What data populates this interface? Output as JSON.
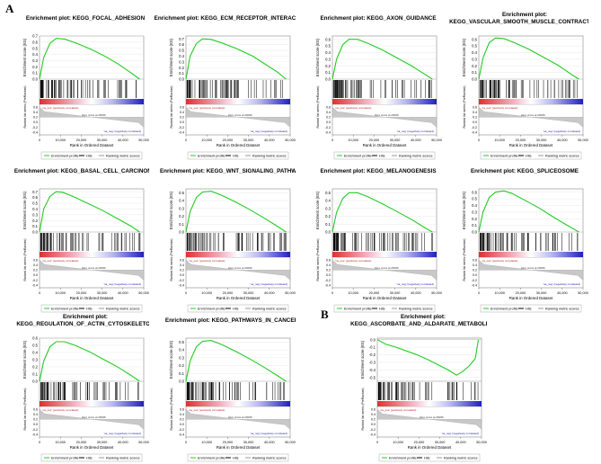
{
  "panel_letters": [
    "A",
    "B"
  ],
  "legend": {
    "enrichment_profile": "Enrichment profile",
    "hits": "Hits",
    "ranking_metric": "Ranking metric scores",
    "colors": {
      "profile": "#22cc22",
      "hits": "#000000",
      "ranking": "#999999"
    }
  },
  "chart_data": [
    {
      "type": "line",
      "title_line1": "Enrichment plot: KEGG_FOCAL_ADHESION",
      "title_line2": "",
      "ylabel_top": "Enrichment score (ES)",
      "ylabel_bottom": "Ranked list metric (PreRanked)",
      "xlabel": "Rank in Ordered Dataset",
      "x_ticks": [
        "0",
        "10,000",
        "20,000",
        "30,000",
        "40,000",
        "50,000"
      ],
      "es_ticks": [
        "0.0",
        "0.1",
        "0.2",
        "0.3",
        "0.4",
        "0.5",
        "0.6",
        "0.7"
      ],
      "es_range": [
        0,
        0.7
      ],
      "es_x": [
        0,
        2000,
        5000,
        8000,
        12000,
        18000,
        25000,
        32000,
        38000,
        44000,
        48000
      ],
      "es_y": [
        0,
        0.35,
        0.58,
        0.66,
        0.65,
        0.58,
        0.48,
        0.36,
        0.24,
        0.1,
        0
      ],
      "metric_ticks": [
        "0.6",
        "0.4",
        "0.2",
        "0.0",
        "-0.2",
        "-0.4"
      ],
      "pos_label": "'na_pos' (positively correlated)",
      "neg_label": "'na_neg' (negatively correlated)",
      "zero_cross": "Zero cross at 26066"
    },
    {
      "type": "line",
      "title_line1": "Enrichment plot: KEGG_ECM_RECEPTOR_INTERACTION",
      "title_line2": "",
      "ylabel_top": "Enrichment score (ES)",
      "ylabel_bottom": "Ranked list metric (PreRanked)",
      "xlabel": "Rank in Ordered Dataset",
      "x_ticks": [
        "0",
        "10,000",
        "20,000",
        "30,000",
        "40,000",
        "50,000"
      ],
      "es_ticks": [
        "0.0",
        "0.1",
        "0.2",
        "0.3",
        "0.4",
        "0.5",
        "0.6",
        "0.7"
      ],
      "es_range": [
        0,
        0.75
      ],
      "es_x": [
        0,
        2000,
        5000,
        8000,
        12000,
        18000,
        25000,
        32000,
        38000,
        44000,
        48000
      ],
      "es_y": [
        0,
        0.4,
        0.62,
        0.7,
        0.69,
        0.62,
        0.52,
        0.4,
        0.26,
        0.12,
        0
      ],
      "metric_ticks": [
        "0.6",
        "0.4",
        "0.2",
        "0.0",
        "-0.2",
        "-0.4"
      ],
      "pos_label": "'na_pos' (positively correlated)",
      "neg_label": "'na_neg' (negatively correlated)",
      "zero_cross": "Zero cross at 26066"
    },
    {
      "type": "line",
      "title_line1": "Enrichment plot: KEGG_AXON_GUIDANCE",
      "title_line2": "",
      "ylabel_top": "Enrichment score (ES)",
      "ylabel_bottom": "Ranked list metric (PreRanked)",
      "xlabel": "Rank in Ordered Dataset",
      "x_ticks": [
        "0",
        "10,000",
        "20,000",
        "30,000",
        "40,000",
        "50,000"
      ],
      "es_ticks": [
        "0.0",
        "0.1",
        "0.2",
        "0.3",
        "0.4",
        "0.5",
        "0.6"
      ],
      "es_range": [
        0,
        0.65
      ],
      "es_x": [
        0,
        2000,
        5000,
        8000,
        12000,
        17000,
        24000,
        31000,
        38000,
        44000,
        48000
      ],
      "es_y": [
        0,
        0.3,
        0.52,
        0.6,
        0.6,
        0.54,
        0.44,
        0.32,
        0.2,
        0.08,
        0
      ],
      "metric_ticks": [
        "0.6",
        "0.4",
        "0.2",
        "0.0",
        "-0.2",
        "-0.4"
      ],
      "pos_label": "'na_pos' (positively correlated)",
      "neg_label": "'na_neg' (negatively correlated)",
      "zero_cross": "Zero cross at 26066"
    },
    {
      "type": "line",
      "title_line1": "Enrichment plot:",
      "title_line2": "KEGG_VASCULAR_SMOOTH_MUSCLE_CONTRACTION",
      "ylabel_top": "Enrichment score (ES)",
      "ylabel_bottom": "Ranked list metric (PreRanked)",
      "xlabel": "Rank in Ordered Dataset",
      "x_ticks": [
        "0",
        "10,000",
        "20,000",
        "30,000",
        "40,000",
        "50,000"
      ],
      "es_ticks": [
        "0.0",
        "0.1",
        "0.2",
        "0.3",
        "0.4",
        "0.5",
        "0.6"
      ],
      "es_range": [
        0,
        0.65
      ],
      "es_x": [
        0,
        2000,
        5000,
        8000,
        12000,
        17000,
        24000,
        31000,
        38000,
        44000,
        48000
      ],
      "es_y": [
        0,
        0.32,
        0.55,
        0.62,
        0.61,
        0.55,
        0.45,
        0.33,
        0.21,
        0.08,
        0
      ],
      "metric_ticks": [
        "0.6",
        "0.4",
        "0.2",
        "0.0",
        "-0.2",
        "-0.4"
      ],
      "pos_label": "'na_pos' (positively correlated)",
      "neg_label": "'na_neg' (negatively correlated)",
      "zero_cross": "Zero cross at 26066"
    },
    {
      "type": "line",
      "title_line1": "Enrichment plot: KEGG_BASAL_CELL_CARCINOMA",
      "title_line2": "",
      "ylabel_top": "Enrichment score (ES)",
      "ylabel_bottom": "Ranked list metric (PreRanked)",
      "xlabel": "Rank in Ordered Dataset",
      "x_ticks": [
        "0",
        "10,000",
        "20,000",
        "30,000",
        "40,000",
        "50,000"
      ],
      "es_ticks": [
        "0.0",
        "0.1",
        "0.2",
        "0.3",
        "0.4",
        "0.5",
        "0.6",
        "0.7"
      ],
      "es_range": [
        0,
        0.75
      ],
      "es_x": [
        0,
        2000,
        5000,
        8000,
        11000,
        16000,
        23000,
        30000,
        37000,
        44000,
        48000
      ],
      "es_y": [
        0,
        0.4,
        0.62,
        0.7,
        0.69,
        0.62,
        0.5,
        0.38,
        0.24,
        0.1,
        0
      ],
      "metric_ticks": [
        "0.6",
        "0.4",
        "0.2",
        "0.0",
        "-0.2",
        "-0.4"
      ],
      "pos_label": "'na_pos' (positively correlated)",
      "neg_label": "'na_neg' (negatively correlated)",
      "zero_cross": "Zero cross at 26066"
    },
    {
      "type": "line",
      "title_line1": "Enrichment plot: KEGG_WNT_SIGNALING_PATHWAY",
      "title_line2": "",
      "ylabel_top": "Enrichment score (ES)",
      "ylabel_bottom": "Ranked list metric (PreRanked)",
      "xlabel": "Rank in Ordered Dataset",
      "x_ticks": [
        "0",
        "10,000",
        "20,000",
        "30,000",
        "40,000",
        "50,000"
      ],
      "es_ticks": [
        "0.0",
        "0.1",
        "0.2",
        "0.3",
        "0.4",
        "0.5"
      ],
      "es_range": [
        0,
        0.55
      ],
      "es_x": [
        0,
        2000,
        5000,
        8000,
        12000,
        17000,
        24000,
        31000,
        38000,
        44000,
        48000
      ],
      "es_y": [
        0,
        0.26,
        0.44,
        0.51,
        0.52,
        0.47,
        0.38,
        0.28,
        0.17,
        0.07,
        0
      ],
      "metric_ticks": [
        "0.6",
        "0.4",
        "0.2",
        "0.0",
        "-0.2",
        "-0.4"
      ],
      "pos_label": "'na_pos' (positively correlated)",
      "neg_label": "'na_neg' (negatively correlated)",
      "zero_cross": "Zero cross at 26066"
    },
    {
      "type": "line",
      "title_line1": "Enrichment plot: KEGG_MELANOGENESIS",
      "title_line2": "",
      "ylabel_top": "Enrichment score (ES)",
      "ylabel_bottom": "Ranked list metric (PreRanked)",
      "xlabel": "Rank in Ordered Dataset",
      "x_ticks": [
        "0",
        "10,000",
        "20,000",
        "30,000",
        "40,000",
        "50,000"
      ],
      "es_ticks": [
        "0.0",
        "0.1",
        "0.2",
        "0.3",
        "0.4",
        "0.5"
      ],
      "es_range": [
        0,
        0.55
      ],
      "es_x": [
        0,
        2000,
        5000,
        8000,
        12000,
        17000,
        24000,
        31000,
        38000,
        44000,
        48000
      ],
      "es_y": [
        0,
        0.25,
        0.43,
        0.5,
        0.5,
        0.45,
        0.36,
        0.26,
        0.16,
        0.06,
        0
      ],
      "metric_ticks": [
        "0.6",
        "0.4",
        "0.2",
        "0.0",
        "-0.2",
        "-0.4"
      ],
      "pos_label": "'na_pos' (positively correlated)",
      "neg_label": "'na_neg' (negatively correlated)",
      "zero_cross": "Zero cross at 26066"
    },
    {
      "type": "line",
      "title_line1": "Enrichment plot: KEGG_SPLICEOSOME",
      "title_line2": "",
      "ylabel_top": "Enrichment score (ES)",
      "ylabel_bottom": "Ranked list metric (PreRanked)",
      "xlabel": "Rank in Ordered Dataset",
      "x_ticks": [
        "0",
        "10,000",
        "20,000",
        "30,000",
        "40,000",
        "50,000"
      ],
      "es_ticks": [
        "0.0",
        "0.1",
        "0.2",
        "0.3",
        "0.4",
        "0.5",
        "0.6"
      ],
      "es_range": [
        0,
        0.65
      ],
      "es_x": [
        0,
        2000,
        5000,
        8000,
        12000,
        16000,
        22000,
        29000,
        36000,
        43000,
        48000
      ],
      "es_y": [
        0,
        0.3,
        0.52,
        0.6,
        0.62,
        0.58,
        0.48,
        0.36,
        0.22,
        0.09,
        0
      ],
      "metric_ticks": [
        "0.6",
        "0.4",
        "0.2",
        "0.0",
        "-0.2",
        "-0.4"
      ],
      "pos_label": "'na_pos' (positively correlated)",
      "neg_label": "'na_neg' (negatively correlated)",
      "zero_cross": "Zero cross at 26066"
    },
    {
      "type": "line",
      "title_line1": "Enrichment plot:",
      "title_line2": "KEGG_REGULATION_OF_ACTIN_CYTOSKELETON",
      "ylabel_top": "Enrichment score (ES)",
      "ylabel_bottom": "Ranked list metric (PreRanked)",
      "xlabel": "Rank in Ordered Dataset",
      "x_ticks": [
        "0",
        "10,000",
        "20,000",
        "30,000",
        "40,000",
        "50,000"
      ],
      "es_ticks": [
        "0.0",
        "0.1",
        "0.2",
        "0.3",
        "0.4",
        "0.5",
        "0.6"
      ],
      "es_range": [
        0,
        0.6
      ],
      "es_x": [
        0,
        2000,
        5000,
        8000,
        12000,
        17000,
        24000,
        31000,
        38000,
        44000,
        48000
      ],
      "es_y": [
        0,
        0.28,
        0.48,
        0.55,
        0.55,
        0.5,
        0.41,
        0.3,
        0.19,
        0.08,
        0
      ],
      "metric_ticks": [
        "0.6",
        "0.4",
        "0.2",
        "0.0",
        "-0.2",
        "-0.4"
      ],
      "pos_label": "'na_pos' (positively correlated)",
      "neg_label": "'na_neg' (negatively correlated)",
      "zero_cross": "Zero cross at 26066"
    },
    {
      "type": "line",
      "title_line1": "Enrichment plot: KEGG_PATHWAYS_IN_CANCER",
      "title_line2": "",
      "ylabel_top": "Enrichment score (ES)",
      "ylabel_bottom": "Ranked list metric (PreRanked)",
      "xlabel": "Rank in Ordered Dataset",
      "x_ticks": [
        "0",
        "10,000",
        "20,000",
        "30,000",
        "40,000",
        "50,000"
      ],
      "es_ticks": [
        "0.0",
        "0.1",
        "0.2",
        "0.3",
        "0.4",
        "0.5"
      ],
      "es_range": [
        0,
        0.55
      ],
      "es_x": [
        0,
        2000,
        5000,
        8000,
        12000,
        17000,
        24000,
        31000,
        38000,
        44000,
        48000
      ],
      "es_y": [
        0,
        0.26,
        0.44,
        0.51,
        0.52,
        0.47,
        0.38,
        0.28,
        0.17,
        0.07,
        0
      ],
      "metric_ticks": [
        "0.6",
        "0.4",
        "0.2",
        "0.0",
        "-0.2",
        "-0.4"
      ],
      "pos_label": "'na_pos' (positively correlated)",
      "neg_label": "'na_neg' (negatively correlated)",
      "zero_cross": "Zero cross at 26066"
    },
    {
      "type": "line",
      "title_line1": "Enrichment plot:",
      "title_line2": "KEGG_ASCORBATE_AND_ALDARATE_METABOLISM",
      "ylabel_top": "Enrichment score (ES)",
      "ylabel_bottom": "Ranked list metric (PreRanked)",
      "xlabel": "Rank in Ordered Dataset",
      "x_ticks": [
        "0",
        "10,000",
        "20,000",
        "30,000",
        "40,000",
        "50,000"
      ],
      "es_ticks": [
        "0.0",
        "-0.1",
        "-0.2",
        "-0.3",
        "-0.4",
        "-0.5"
      ],
      "es_range": [
        -0.55,
        0.02
      ],
      "es_x": [
        0,
        4000,
        9000,
        14000,
        19000,
        24000,
        29000,
        34000,
        38000,
        41000,
        44000,
        47000,
        48500
      ],
      "es_y": [
        0,
        -0.06,
        -0.1,
        -0.15,
        -0.2,
        -0.26,
        -0.33,
        -0.4,
        -0.47,
        -0.42,
        -0.35,
        -0.25,
        0
      ],
      "metric_ticks": [
        "0.6",
        "0.4",
        "0.2",
        "0.0",
        "-0.2",
        "-0.4"
      ],
      "pos_label": "'na_pos' (positively correlated)",
      "neg_label": "'na_neg' (negatively correlated)",
      "zero_cross": "Zero cross at 26066"
    }
  ]
}
